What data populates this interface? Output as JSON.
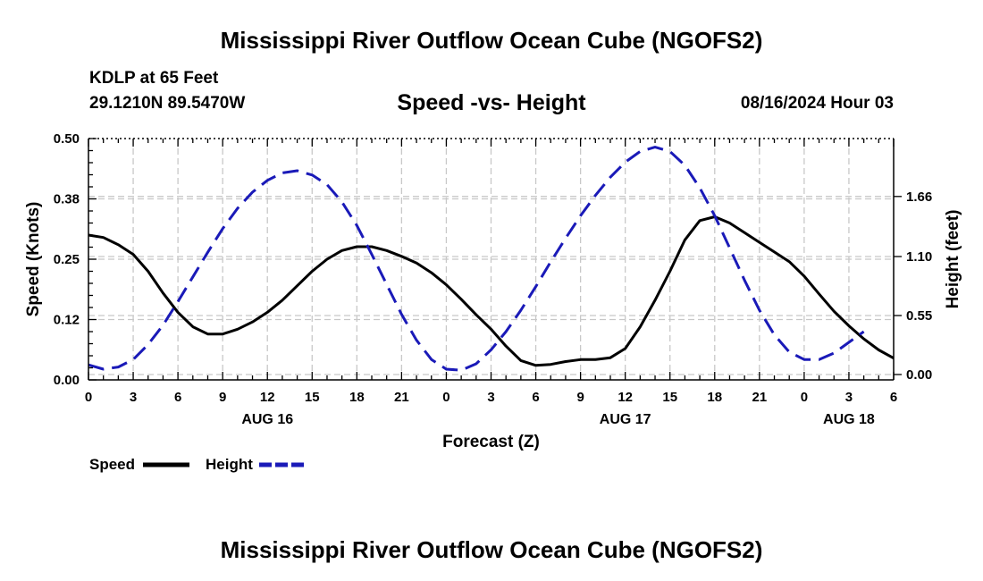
{
  "header": {
    "title": "Mississippi River Outflow Ocean Cube (NGOFS2)",
    "station": "KDLP at 65 Feet",
    "coords": "29.1210N  89.5470W",
    "subtitle": "Speed -vs- Height",
    "datetime": "08/16/2024 Hour 03"
  },
  "footer": {
    "title": "Mississippi River Outflow Ocean Cube (NGOFS2)"
  },
  "chart_data": {
    "type": "line",
    "title": "Speed -vs- Height",
    "xlabel": "Forecast (Z)",
    "ylabel": "Speed (Knots)",
    "y2label": "Height (feet)",
    "xlim": [
      0,
      54
    ],
    "ylim": [
      0,
      0.5
    ],
    "y2lim": [
      -0.05,
      2.2
    ],
    "x_ticks": [
      0,
      3,
      6,
      9,
      12,
      15,
      18,
      21,
      24,
      27,
      30,
      33,
      36,
      39,
      42,
      45,
      48,
      51,
      54
    ],
    "x_tick_labels": [
      "0",
      "3",
      "6",
      "9",
      "12",
      "15",
      "18",
      "21",
      "0",
      "3",
      "6",
      "9",
      "12",
      "15",
      "18",
      "21",
      "0",
      "3",
      "6"
    ],
    "date_labels": [
      {
        "x": 12,
        "label": "AUG 16"
      },
      {
        "x": 36,
        "label": "AUG 17"
      },
      {
        "x": 51,
        "label": "AUG 18"
      }
    ],
    "y_ticks": [
      0,
      0.125,
      0.25,
      0.375,
      0.5
    ],
    "y_tick_labels": [
      "0.00",
      "0.12",
      "0.25",
      "0.38",
      "0.50"
    ],
    "y2_ticks": [
      0,
      0.55,
      1.1,
      1.66
    ],
    "y2_tick_labels": [
      "0.00",
      "0.55",
      "1.10",
      "1.66"
    ],
    "grid": true,
    "legend": {
      "position": "bottom-left",
      "items": [
        "Speed",
        "Height"
      ]
    },
    "series": [
      {
        "name": "Speed",
        "axis": "left",
        "color": "#000000",
        "style": "solid",
        "points": [
          [
            0,
            0.3
          ],
          [
            1,
            0.295
          ],
          [
            2,
            0.28
          ],
          [
            3,
            0.26
          ],
          [
            4,
            0.225
          ],
          [
            5,
            0.18
          ],
          [
            6,
            0.14
          ],
          [
            7,
            0.11
          ],
          [
            8,
            0.095
          ],
          [
            9,
            0.095
          ],
          [
            10,
            0.105
          ],
          [
            11,
            0.12
          ],
          [
            12,
            0.14
          ],
          [
            13,
            0.165
          ],
          [
            14,
            0.195
          ],
          [
            15,
            0.225
          ],
          [
            16,
            0.25
          ],
          [
            17,
            0.268
          ],
          [
            18,
            0.276
          ],
          [
            19,
            0.276
          ],
          [
            20,
            0.268
          ],
          [
            21,
            0.256
          ],
          [
            22,
            0.242
          ],
          [
            23,
            0.222
          ],
          [
            24,
            0.197
          ],
          [
            25,
            0.167
          ],
          [
            26,
            0.135
          ],
          [
            27,
            0.105
          ],
          [
            28,
            0.07
          ],
          [
            29,
            0.04
          ],
          [
            30,
            0.03
          ],
          [
            31,
            0.032
          ],
          [
            32,
            0.038
          ],
          [
            33,
            0.042
          ],
          [
            34,
            0.042
          ],
          [
            35,
            0.046
          ],
          [
            36,
            0.065
          ],
          [
            37,
            0.11
          ],
          [
            38,
            0.165
          ],
          [
            39,
            0.225
          ],
          [
            40,
            0.29
          ],
          [
            41,
            0.33
          ],
          [
            42,
            0.338
          ],
          [
            43,
            0.325
          ],
          [
            44,
            0.305
          ],
          [
            45,
            0.285
          ],
          [
            46,
            0.265
          ],
          [
            47,
            0.245
          ],
          [
            48,
            0.215
          ],
          [
            49,
            0.178
          ],
          [
            50,
            0.142
          ],
          [
            51,
            0.112
          ],
          [
            52,
            0.085
          ],
          [
            53,
            0.062
          ],
          [
            54,
            0.045
          ]
        ]
      },
      {
        "name": "Height",
        "axis": "right",
        "color": "#1a1ab8",
        "style": "dashed",
        "points": [
          [
            0,
            0.09
          ],
          [
            1,
            0.05
          ],
          [
            2,
            0.07
          ],
          [
            3,
            0.14
          ],
          [
            4,
            0.28
          ],
          [
            5,
            0.46
          ],
          [
            6,
            0.68
          ],
          [
            7,
            0.91
          ],
          [
            8,
            1.14
          ],
          [
            9,
            1.36
          ],
          [
            10,
            1.55
          ],
          [
            11,
            1.7
          ],
          [
            12,
            1.81
          ],
          [
            13,
            1.88
          ],
          [
            14,
            1.9
          ],
          [
            15,
            1.86
          ],
          [
            16,
            1.77
          ],
          [
            17,
            1.61
          ],
          [
            18,
            1.39
          ],
          [
            19,
            1.12
          ],
          [
            20,
            0.84
          ],
          [
            21,
            0.56
          ],
          [
            22,
            0.32
          ],
          [
            23,
            0.14
          ],
          [
            24,
            0.05
          ],
          [
            25,
            0.04
          ],
          [
            26,
            0.1
          ],
          [
            27,
            0.23
          ],
          [
            28,
            0.4
          ],
          [
            29,
            0.6
          ],
          [
            30,
            0.82
          ],
          [
            31,
            1.05
          ],
          [
            32,
            1.27
          ],
          [
            33,
            1.48
          ],
          [
            34,
            1.67
          ],
          [
            35,
            1.84
          ],
          [
            36,
            1.98
          ],
          [
            37,
            2.08
          ],
          [
            38,
            2.12
          ],
          [
            39,
            2.08
          ],
          [
            40,
            1.95
          ],
          [
            41,
            1.74
          ],
          [
            42,
            1.48
          ],
          [
            43,
            1.18
          ],
          [
            44,
            0.88
          ],
          [
            45,
            0.6
          ],
          [
            46,
            0.37
          ],
          [
            47,
            0.21
          ],
          [
            48,
            0.14
          ],
          [
            49,
            0.14
          ],
          [
            50,
            0.2
          ],
          [
            51,
            0.3
          ],
          [
            52,
            0.4
          ]
        ]
      }
    ]
  }
}
